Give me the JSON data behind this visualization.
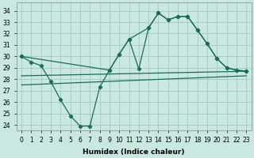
{
  "xlabel": "Humidex (Indice chaleur)",
  "bg_color": "#c8e8e0",
  "grid_color": "#a8ccc4",
  "line_color": "#1a6b5a",
  "xlim": [
    -0.5,
    23.5
  ],
  "ylim": [
    23.5,
    34.7
  ],
  "yticks": [
    24,
    25,
    26,
    27,
    28,
    29,
    30,
    31,
    32,
    33,
    34
  ],
  "xticks": [
    0,
    1,
    2,
    3,
    4,
    5,
    6,
    7,
    8,
    9,
    10,
    11,
    12,
    13,
    14,
    15,
    16,
    17,
    18,
    19,
    20,
    21,
    22,
    23
  ],
  "curve1_x": [
    0,
    1,
    2,
    3,
    4,
    5,
    6,
    7,
    8,
    9,
    10,
    11,
    12,
    13,
    14,
    15,
    16,
    17,
    18,
    19,
    20,
    21,
    22,
    23
  ],
  "curve1_y": [
    30.0,
    29.5,
    29.2,
    27.8,
    26.2,
    24.8,
    23.9,
    23.9,
    27.3,
    28.8,
    30.2,
    31.5,
    28.9,
    32.5,
    33.8,
    33.2,
    33.5,
    33.5,
    32.3,
    31.1,
    29.8,
    29.0,
    28.8,
    28.7
  ],
  "curve2_x": [
    0,
    9,
    10,
    11,
    13,
    14,
    15,
    16,
    17,
    18,
    19,
    20,
    21,
    22,
    23
  ],
  "curve2_y": [
    30.0,
    28.8,
    30.2,
    31.5,
    32.5,
    33.8,
    33.2,
    33.5,
    33.5,
    32.3,
    31.1,
    29.8,
    29.0,
    28.8,
    28.7
  ],
  "line3_x": [
    0,
    23
  ],
  "line3_y": [
    27.5,
    28.3
  ],
  "line4_x": [
    0,
    23
  ],
  "line4_y": [
    28.3,
    28.7
  ],
  "curve1_has_markers": true,
  "curve2_has_markers": true
}
